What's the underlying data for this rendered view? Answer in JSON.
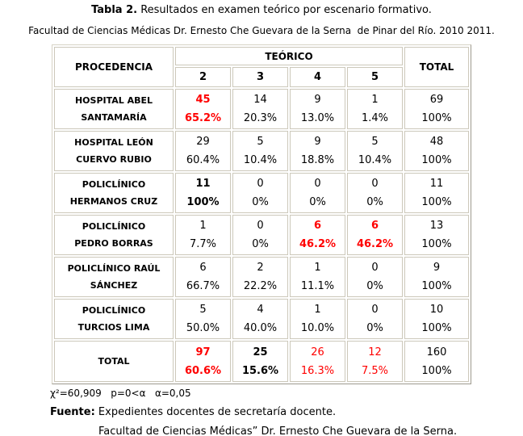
{
  "page": {
    "title_bold": "Tabla 2.",
    "title_rest": " Resultados en examen teórico por escenario formativo.",
    "subtitle": "Facultad de Ciencias Médicas Dr. Ernesto Che Guevara de la Serna  de Pinar del Río. 2010 2011."
  },
  "table": {
    "header": {
      "procedencia": "PROCEDENCIA",
      "teorico": "TEÓRICO",
      "total": "TOTAL",
      "grades": [
        "2",
        "3",
        "4",
        "5"
      ]
    },
    "rows": [
      {
        "label_lines": [
          "HOSPITAL ABEL",
          "SANTAMARÍA"
        ],
        "cells": [
          {
            "n": "45",
            "pct": "65.2%",
            "style": "red-bold"
          },
          {
            "n": "14",
            "pct": "20.3%",
            "style": "normal"
          },
          {
            "n": "9",
            "pct": "13.0%",
            "style": "normal"
          },
          {
            "n": "1",
            "pct": "1.4%",
            "style": "normal"
          },
          {
            "n": "69",
            "pct": "100%",
            "style": "normal"
          }
        ]
      },
      {
        "label_lines": [
          "HOSPITAL LEÓN",
          "CUERVO RUBIO"
        ],
        "cells": [
          {
            "n": "29",
            "pct": "60.4%",
            "style": "normal"
          },
          {
            "n": "5",
            "pct": "10.4%",
            "style": "normal"
          },
          {
            "n": "9",
            "pct": "18.8%",
            "style": "normal"
          },
          {
            "n": "5",
            "pct": "10.4%",
            "style": "normal"
          },
          {
            "n": "48",
            "pct": "100%",
            "style": "normal"
          }
        ]
      },
      {
        "label_lines": [
          "POLICLÍNICO",
          "HERMANOS CRUZ"
        ],
        "cells": [
          {
            "n": "11",
            "pct": "100%",
            "style": "bold"
          },
          {
            "n": "0",
            "pct": "0%",
            "style": "normal"
          },
          {
            "n": "0",
            "pct": "0%",
            "style": "normal"
          },
          {
            "n": "0",
            "pct": "0%",
            "style": "normal"
          },
          {
            "n": "11",
            "pct": "100%",
            "style": "normal"
          }
        ]
      },
      {
        "label_lines": [
          "POLICLÍNICO",
          "PEDRO BORRAS"
        ],
        "cells": [
          {
            "n": "1",
            "pct": "7.7%",
            "style": "normal"
          },
          {
            "n": "0",
            "pct": "0%",
            "style": "normal"
          },
          {
            "n": "6",
            "pct": "46.2%",
            "style": "red-bold"
          },
          {
            "n": "6",
            "pct": "46.2%",
            "style": "red-bold"
          },
          {
            "n": "13",
            "pct": "100%",
            "style": "normal"
          }
        ]
      },
      {
        "label_lines": [
          "POLICLÍNICO RAÚL",
          "SÁNCHEZ"
        ],
        "cells": [
          {
            "n": "6",
            "pct": "66.7%",
            "style": "normal"
          },
          {
            "n": "2",
            "pct": "22.2%",
            "style": "normal"
          },
          {
            "n": "1",
            "pct": "11.1%",
            "style": "normal"
          },
          {
            "n": "0",
            "pct": "0%",
            "style": "normal"
          },
          {
            "n": "9",
            "pct": "100%",
            "style": "normal"
          }
        ]
      },
      {
        "label_lines": [
          "POLICLÍNICO",
          "TURCIOS LIMA"
        ],
        "cells": [
          {
            "n": "5",
            "pct": "50.0%",
            "style": "normal"
          },
          {
            "n": "4",
            "pct": "40.0%",
            "style": "normal"
          },
          {
            "n": "1",
            "pct": "10.0%",
            "style": "normal"
          },
          {
            "n": "0",
            "pct": "0%",
            "style": "normal"
          },
          {
            "n": "10",
            "pct": "100%",
            "style": "normal"
          }
        ]
      },
      {
        "label_lines": [
          "TOTAL"
        ],
        "is_total": true,
        "cells": [
          {
            "n": "97",
            "pct": "60.6%",
            "style": "red-bold"
          },
          {
            "n": "25",
            "pct": "15.6%",
            "style": "bold"
          },
          {
            "n": "26",
            "pct": "16.3%",
            "style": "red"
          },
          {
            "n": "12",
            "pct": "7.5%",
            "style": "red"
          },
          {
            "n": "160",
            "pct": "100%",
            "style": "normal"
          }
        ]
      }
    ]
  },
  "footnotes": {
    "stats": "χ²=60,909   p=0<α   α=0,05",
    "fuente_bold": "Fuente:",
    "fuente_rest": " Expedientes docentes de secretaría docente.",
    "line2": "Facultad de Ciencias Médicas” Dr. Ernesto Che Guevara de la Serna."
  },
  "colors": {
    "highlight_red": "#ff0000",
    "text": "#000000",
    "cell_border": "#ccc8ba",
    "background": "#ffffff"
  },
  "chart_data": {
    "type": "table",
    "title": "Tabla 2. Resultados en examen teórico por escenario formativo.",
    "subtitle": "Facultad de Ciencias Médicas Dr. Ernesto Che Guevara de la Serna de Pinar del Río. 2010 2011.",
    "columns": [
      "PROCEDENCIA",
      "TEÓRICO 2",
      "TEÓRICO 3",
      "TEÓRICO 4",
      "TEÓRICO 5",
      "TOTAL"
    ],
    "rows": [
      {
        "procedencia": "HOSPITAL ABEL SANTAMARÍA",
        "counts": [
          45,
          14,
          9,
          1
        ],
        "percents": [
          65.2,
          20.3,
          13.0,
          1.4
        ],
        "total": 69,
        "total_pct": 100
      },
      {
        "procedencia": "HOSPITAL LEÓN CUERVO RUBIO",
        "counts": [
          29,
          5,
          9,
          5
        ],
        "percents": [
          60.4,
          10.4,
          18.8,
          10.4
        ],
        "total": 48,
        "total_pct": 100
      },
      {
        "procedencia": "POLICLÍNICO HERMANOS CRUZ",
        "counts": [
          11,
          0,
          0,
          0
        ],
        "percents": [
          100,
          0,
          0,
          0
        ],
        "total": 11,
        "total_pct": 100
      },
      {
        "procedencia": "POLICLÍNICO PEDRO BORRAS",
        "counts": [
          1,
          0,
          6,
          6
        ],
        "percents": [
          7.7,
          0,
          46.2,
          46.2
        ],
        "total": 13,
        "total_pct": 100
      },
      {
        "procedencia": "POLICLÍNICO RAÚL SÁNCHEZ",
        "counts": [
          6,
          2,
          1,
          0
        ],
        "percents": [
          66.7,
          22.2,
          11.1,
          0
        ],
        "total": 9,
        "total_pct": 100
      },
      {
        "procedencia": "POLICLÍNICO TURCIOS LIMA",
        "counts": [
          5,
          4,
          1,
          0
        ],
        "percents": [
          50.0,
          40.0,
          10.0,
          0
        ],
        "total": 10,
        "total_pct": 100
      },
      {
        "procedencia": "TOTAL",
        "counts": [
          97,
          25,
          26,
          12
        ],
        "percents": [
          60.6,
          15.6,
          16.3,
          7.5
        ],
        "total": 160,
        "total_pct": 100
      }
    ],
    "stats": {
      "chi_square": "60,909",
      "p": "0<α",
      "alpha": "0,05"
    }
  }
}
